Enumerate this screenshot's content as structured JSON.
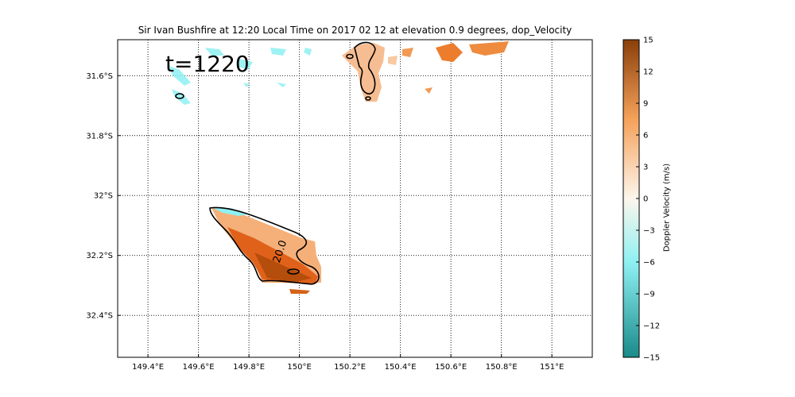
{
  "chart_data": {
    "type": "heatmap",
    "title": "Sir Ivan Bushfire at 12:20 Local Time on 2017 02 12 at elevation 0.9 degrees, dop_Velocity",
    "x_ticks": [
      "149.4°E",
      "149.6°E",
      "149.8°E",
      "150°E",
      "150.2°E",
      "150.4°E",
      "150.6°E",
      "150.8°E",
      "151°E"
    ],
    "x_tick_values": [
      149.4,
      149.6,
      149.8,
      150.0,
      150.2,
      150.4,
      150.6,
      150.8,
      151.0
    ],
    "y_ticks": [
      "31.6°S",
      "31.8°S",
      "32°S",
      "32.2°S",
      "32.4°S"
    ],
    "y_tick_values": [
      -31.6,
      -31.8,
      -32.0,
      -32.2,
      -32.4
    ],
    "xlim": [
      149.28,
      151.16
    ],
    "ylim": [
      -32.54,
      -31.48
    ],
    "grid": true,
    "annotation": "t=1220",
    "contour_label": "20.0",
    "colorbar": {
      "label": "Doppler Velocity (m/s)",
      "min": -15,
      "max": 15,
      "ticks": [
        "15",
        "12",
        "9",
        "6",
        "3",
        "0",
        "−3",
        "−6",
        "−9",
        "−12",
        "−15"
      ],
      "tick_values": [
        15,
        12,
        9,
        6,
        3,
        0,
        -3,
        -6,
        -9,
        -12,
        -15
      ],
      "colors": [
        "#1a8a8a",
        "#8ff0f2",
        "#fdf6ec",
        "#f5a15a",
        "#8a3f0a"
      ]
    }
  }
}
